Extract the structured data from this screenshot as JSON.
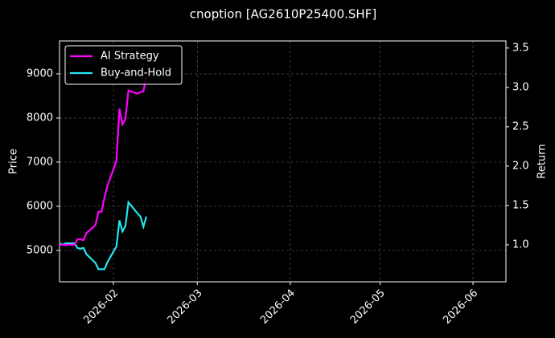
{
  "chart_data": {
    "type": "line",
    "title": "cnoption [AG2610P25400.SHF]",
    "y_label": "Price",
    "y2_label": "Return",
    "x": [
      "2026-01-14",
      "2026-01-15",
      "2026-01-16",
      "2026-01-19",
      "2026-01-20",
      "2026-01-21",
      "2026-01-22",
      "2026-01-23",
      "2026-01-26",
      "2026-01-27",
      "2026-01-28",
      "2026-01-29",
      "2026-01-30",
      "2026-02-02",
      "2026-02-03",
      "2026-02-04",
      "2026-02-05",
      "2026-02-06",
      "2026-02-09",
      "2026-02-10",
      "2026-02-11",
      "2026-02-12"
    ],
    "series": [
      {
        "name": "AI Strategy",
        "color": "#ff00ff",
        "axis": "y2",
        "values": [
          1.0,
          1.0,
          1.0,
          1.0,
          1.07,
          1.07,
          1.06,
          1.15,
          1.25,
          1.42,
          1.42,
          1.6,
          1.75,
          2.07,
          2.73,
          2.53,
          2.6,
          2.96,
          2.92,
          2.94,
          2.95,
          3.14
        ]
      },
      {
        "name": "Buy-and-Hold",
        "color": "#22e5f0",
        "axis": "y2",
        "values": [
          1.02,
          1.0,
          1.02,
          1.02,
          0.96,
          0.95,
          0.96,
          0.88,
          0.77,
          0.69,
          0.69,
          0.69,
          0.78,
          0.98,
          1.31,
          1.17,
          1.24,
          1.54,
          1.4,
          1.36,
          1.23,
          1.36
        ]
      }
    ],
    "xlim": [
      "2026-01-14",
      "2026-06-12"
    ],
    "xticks": [
      {
        "value": "2026-02-01",
        "label": "2026-02"
      },
      {
        "value": "2026-03-01",
        "label": "2026-03"
      },
      {
        "value": "2026-04-01",
        "label": "2026-04"
      },
      {
        "value": "2026-05-01",
        "label": "2026-05"
      },
      {
        "value": "2026-06-01",
        "label": "2026-06"
      }
    ],
    "ylim": [
      4290,
      9745
    ],
    "yticks": [
      5000,
      6000,
      7000,
      8000,
      9000
    ],
    "y2lim": [
      0.53,
      3.59
    ],
    "y2ticks": [
      {
        "value": 1,
        "label": "1.0"
      },
      {
        "value": 1.5,
        "label": "1.5"
      },
      {
        "value": 2,
        "label": "2.0"
      },
      {
        "value": 2.5,
        "label": "2.5"
      },
      {
        "value": 3,
        "label": "3.0"
      },
      {
        "value": 3.5,
        "label": "3.5"
      }
    ],
    "grid": true,
    "legend": "upper left"
  }
}
